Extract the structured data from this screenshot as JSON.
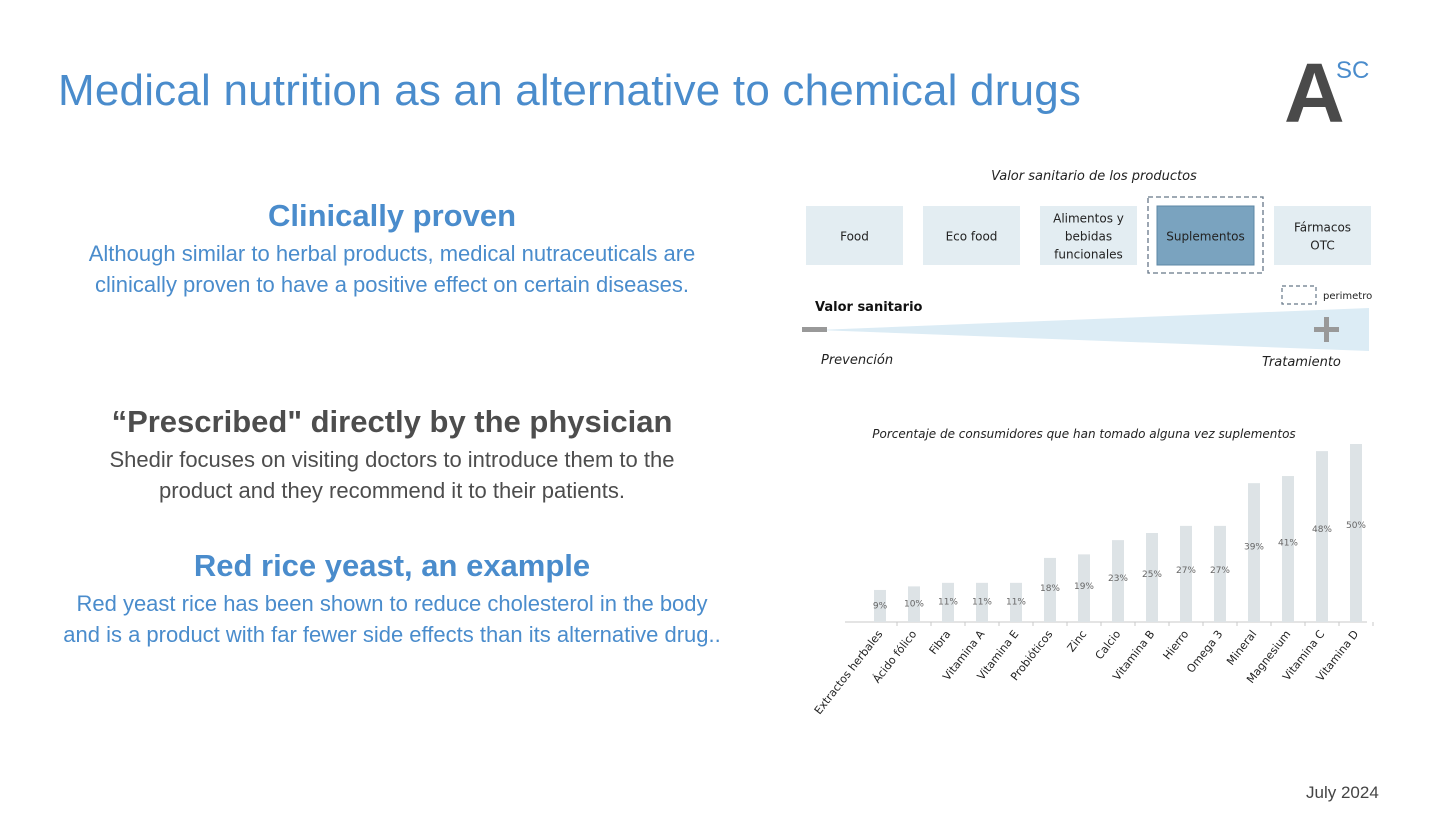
{
  "slide": {
    "title": "Medical nutrition as an alternative to chemical drugs",
    "logo_letter": "A",
    "logo_superscript": "SC",
    "date": "July 2024"
  },
  "sections": [
    {
      "heading": "Clinically proven",
      "body": "Although similar to herbal products, medical nutraceuticals are clinically proven to have a positive effect on certain diseases."
    },
    {
      "heading": "“Prescribed\" directly by the physician",
      "body": "Shedir focuses on visiting doctors to introduce them to the product and they recommend it to their patients."
    },
    {
      "heading": "Red rice yeast, an example",
      "body": "Red yeast rice has been shown to reduce cholesterol in the body and is a product with far fewer side effects than its alternative drug.."
    }
  ],
  "colors": {
    "accent_blue": "#4a8ccc",
    "dark_gray": "#4d4d4d",
    "box_fill": "#e3edf2",
    "box_highlight": "#7aa3bf",
    "bar_fill": "#dde3e6",
    "wedge_fill": "#dcecf5"
  },
  "diagram": {
    "title": "Valor sanitario de los productos",
    "categories": [
      {
        "lines": [
          "Food"
        ],
        "highlighted": false
      },
      {
        "lines": [
          "Eco food"
        ],
        "highlighted": false
      },
      {
        "lines": [
          "Alimentos y",
          "bebidas",
          "funcionales"
        ],
        "highlighted": false
      },
      {
        "lines": [
          "Suplementos"
        ],
        "highlighted": true
      },
      {
        "lines": [
          "Fármacos",
          "OTC"
        ],
        "highlighted": false
      }
    ],
    "legend_label": "perimetro",
    "axis_label": "Valor sanitario",
    "left_label": "Prevención",
    "right_label": "Tratamiento",
    "minus_icon": "minus-icon",
    "plus_icon": "plus-icon"
  },
  "chart_data": {
    "type": "bar",
    "title": "Porcentaje de consumidores que han tomado alguna vez suplementos",
    "categories": [
      "Extractos herbales",
      "Ácido fólico",
      "Fibra",
      "Vitamina A",
      "Vitamina E",
      "Probióticos",
      "Zinc",
      "Calcio",
      "Vitamina B",
      "Hierro",
      "Omega 3",
      "Mineral",
      "Magnesium",
      "Vitamina C",
      "Vitamina D"
    ],
    "values": [
      9,
      10,
      11,
      11,
      11,
      18,
      19,
      23,
      25,
      27,
      27,
      39,
      41,
      48,
      50
    ],
    "data_labels": [
      "9%",
      "10%",
      "11%",
      "11%",
      "11%",
      "18%",
      "19%",
      "23%",
      "25%",
      "27%",
      "27%",
      "39%",
      "41%",
      "48%",
      "50%"
    ],
    "xlabel": "",
    "ylabel": "",
    "ylim": [
      0,
      50
    ],
    "grid": false,
    "legend": "none"
  }
}
